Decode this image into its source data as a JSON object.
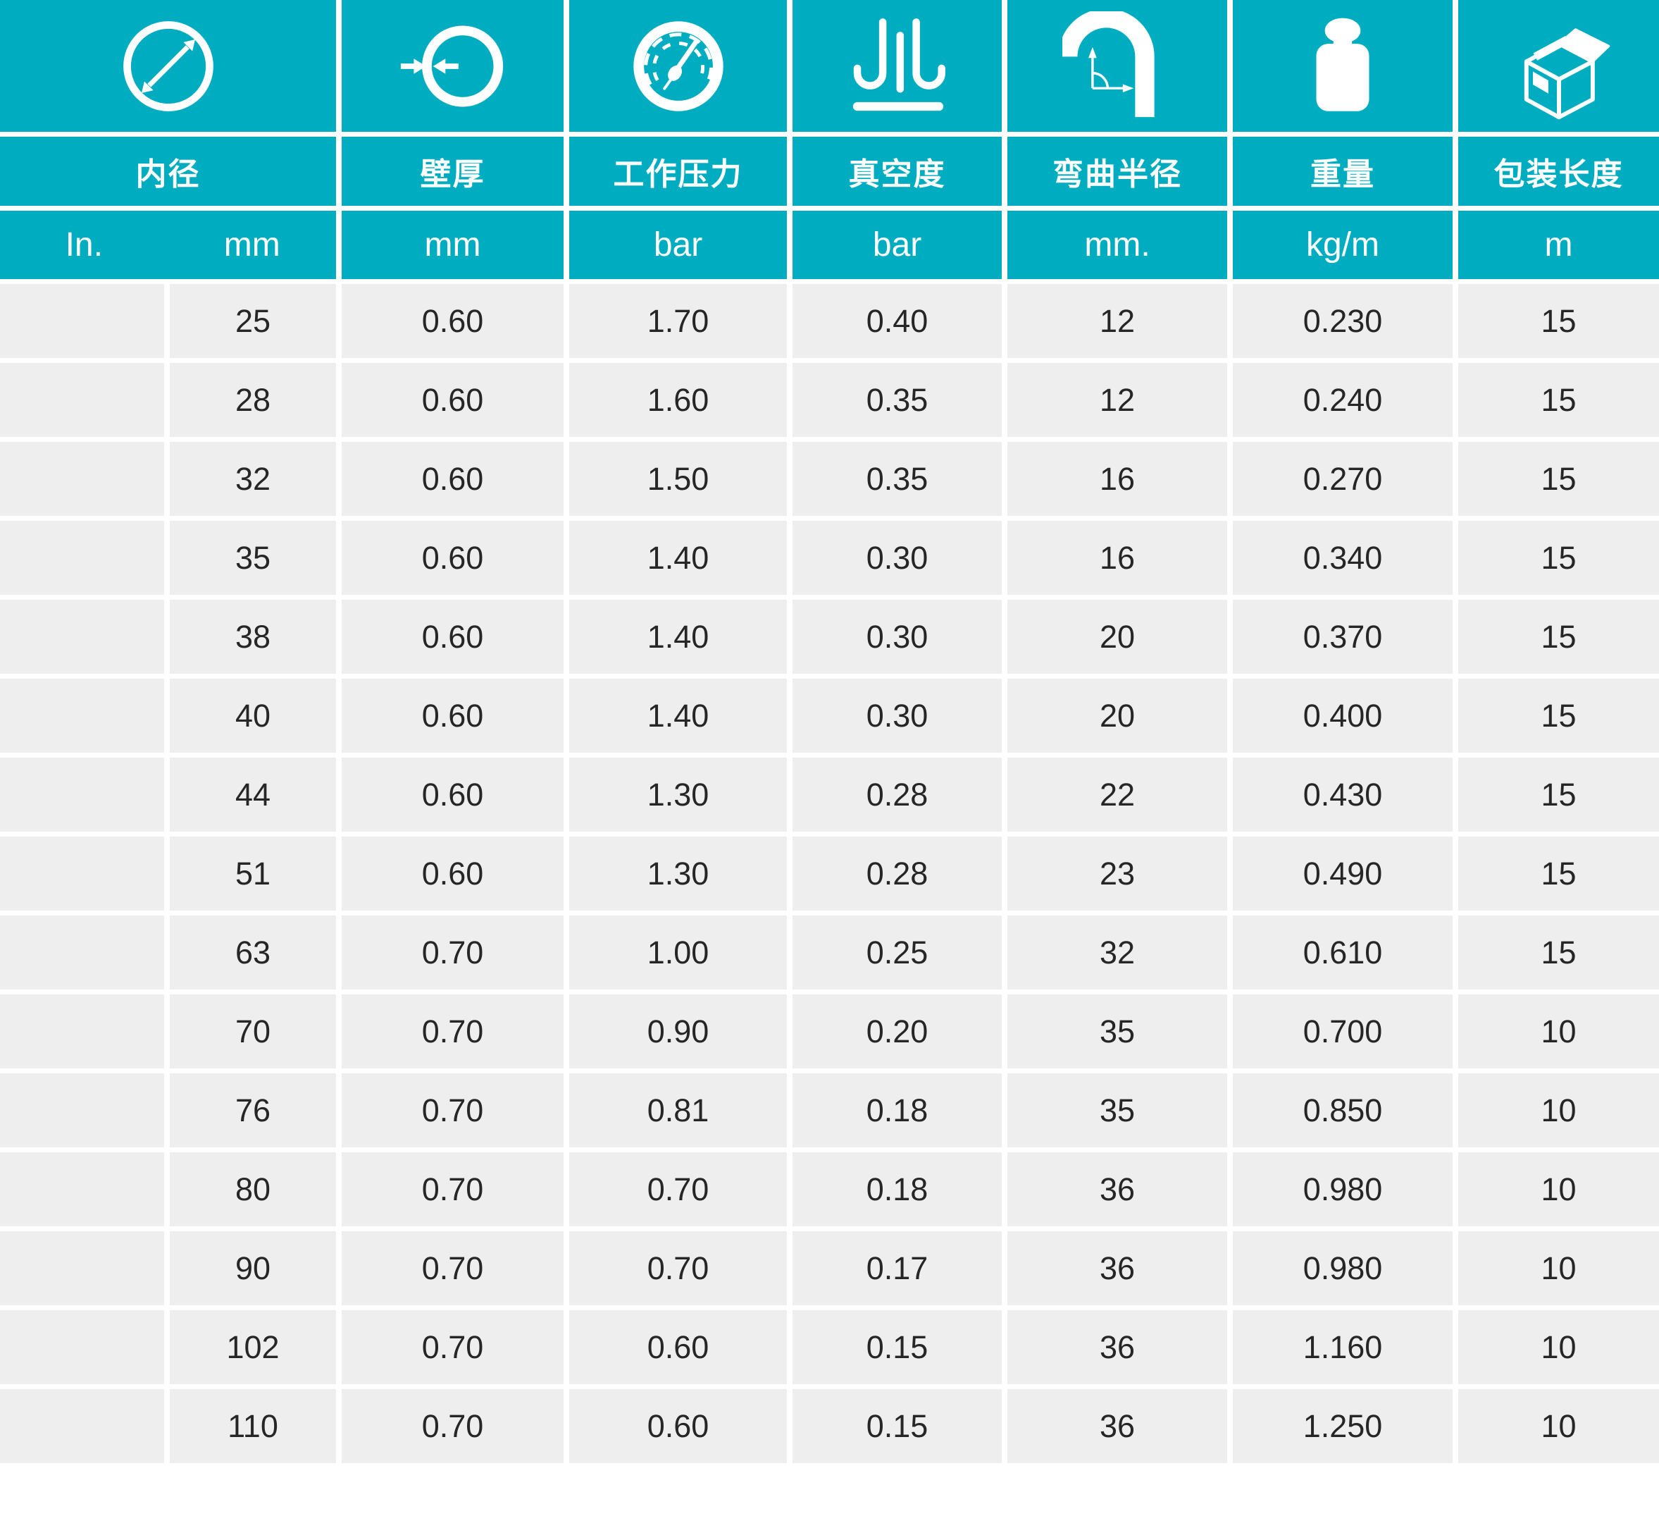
{
  "theme": {
    "accent": "#00adc0",
    "row_bg": "#eeeeee",
    "text": "#262626",
    "header_text": "#ffffff"
  },
  "table": {
    "columns": [
      {
        "id": "inner_diameter",
        "icon": "diameter-icon",
        "label": "内径",
        "units": [
          "In.",
          "mm"
        ]
      },
      {
        "id": "wall_thickness",
        "icon": "wall-thickness-icon",
        "label": "壁厚",
        "unit": "mm"
      },
      {
        "id": "working_pressure",
        "icon": "pressure-gauge-icon",
        "label": "工作压力",
        "unit": "bar"
      },
      {
        "id": "vacuum",
        "icon": "vacuum-icon",
        "label": "真空度",
        "unit": "bar"
      },
      {
        "id": "bend_radius",
        "icon": "bend-radius-icon",
        "label": "弯曲半径",
        "unit": "mm."
      },
      {
        "id": "weight",
        "icon": "weight-icon",
        "label": "重量",
        "unit": "kg/m"
      },
      {
        "id": "packing_length",
        "icon": "package-icon",
        "label": "包装长度",
        "unit": "m"
      }
    ],
    "rows": [
      {
        "in": "",
        "mm": "25",
        "wall": "0.60",
        "pressure": "1.70",
        "vacuum": "0.40",
        "bend": "12",
        "weight": "0.230",
        "length": "15"
      },
      {
        "in": "",
        "mm": "28",
        "wall": "0.60",
        "pressure": "1.60",
        "vacuum": "0.35",
        "bend": "12",
        "weight": "0.240",
        "length": "15"
      },
      {
        "in": "",
        "mm": "32",
        "wall": "0.60",
        "pressure": "1.50",
        "vacuum": "0.35",
        "bend": "16",
        "weight": "0.270",
        "length": "15"
      },
      {
        "in": "",
        "mm": "35",
        "wall": "0.60",
        "pressure": "1.40",
        "vacuum": "0.30",
        "bend": "16",
        "weight": "0.340",
        "length": "15"
      },
      {
        "in": "",
        "mm": "38",
        "wall": "0.60",
        "pressure": "1.40",
        "vacuum": "0.30",
        "bend": "20",
        "weight": "0.370",
        "length": "15"
      },
      {
        "in": "",
        "mm": "40",
        "wall": "0.60",
        "pressure": "1.40",
        "vacuum": "0.30",
        "bend": "20",
        "weight": "0.400",
        "length": "15"
      },
      {
        "in": "",
        "mm": "44",
        "wall": "0.60",
        "pressure": "1.30",
        "vacuum": "0.28",
        "bend": "22",
        "weight": "0.430",
        "length": "15"
      },
      {
        "in": "",
        "mm": "51",
        "wall": "0.60",
        "pressure": "1.30",
        "vacuum": "0.28",
        "bend": "23",
        "weight": "0.490",
        "length": "15"
      },
      {
        "in": "",
        "mm": "63",
        "wall": "0.70",
        "pressure": "1.00",
        "vacuum": "0.25",
        "bend": "32",
        "weight": "0.610",
        "length": "15"
      },
      {
        "in": "",
        "mm": "70",
        "wall": "0.70",
        "pressure": "0.90",
        "vacuum": "0.20",
        "bend": "35",
        "weight": "0.700",
        "length": "10"
      },
      {
        "in": "",
        "mm": "76",
        "wall": "0.70",
        "pressure": "0.81",
        "vacuum": "0.18",
        "bend": "35",
        "weight": "0.850",
        "length": "10"
      },
      {
        "in": "",
        "mm": "80",
        "wall": "0.70",
        "pressure": "0.70",
        "vacuum": "0.18",
        "bend": "36",
        "weight": "0.980",
        "length": "10"
      },
      {
        "in": "",
        "mm": "90",
        "wall": "0.70",
        "pressure": "0.70",
        "vacuum": "0.17",
        "bend": "36",
        "weight": "0.980",
        "length": "10"
      },
      {
        "in": "",
        "mm": "102",
        "wall": "0.70",
        "pressure": "0.60",
        "vacuum": "0.15",
        "bend": "36",
        "weight": "1.160",
        "length": "10"
      },
      {
        "in": "",
        "mm": "110",
        "wall": "0.70",
        "pressure": "0.60",
        "vacuum": "0.15",
        "bend": "36",
        "weight": "1.250",
        "length": "10"
      }
    ]
  }
}
